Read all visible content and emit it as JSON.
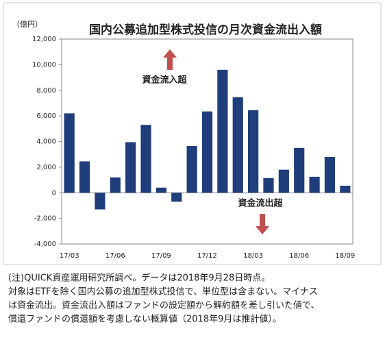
{
  "chart_data": {
    "type": "bar",
    "title": "国内公募追加型株式投信の月次資金流出入額",
    "y_axis_label": "（億円）",
    "categories": [
      "17/03",
      null,
      null,
      "17/06",
      null,
      null,
      "17/09",
      null,
      null,
      "17/12",
      null,
      null,
      "18/03",
      null,
      null,
      "18/06",
      null,
      null,
      "18/09"
    ],
    "values": [
      6200,
      2450,
      -1300,
      1200,
      3950,
      5300,
      400,
      -700,
      3650,
      6350,
      9600,
      7450,
      6450,
      1150,
      1800,
      3500,
      1250,
      2800,
      550
    ],
    "color": "#1f3d7a",
    "ylim": [
      -4000,
      12000
    ],
    "yticks": [
      {
        "value": -4000,
        "label": "-4,000"
      },
      {
        "value": -2000,
        "label": "-2,000"
      },
      0,
      {
        "value": 2000,
        "label": "2,000"
      },
      {
        "value": 4000,
        "label": "4,000"
      },
      {
        "value": 6000,
        "label": "6,000"
      },
      {
        "value": 8000,
        "label": "8,000"
      },
      {
        "value": 10000,
        "label": "10,000"
      },
      {
        "value": 12000,
        "label": "12,000"
      }
    ],
    "grid": false,
    "annotations": [
      "資金流入超",
      "資金流出超"
    ],
    "notes": [
      "(注)QUICK資産運用研究所調べ。データは2018年9月28日時点。",
      "対象はETFを除く国内公募の追加型株式投信で、単位型は含まない。マイナス",
      "は資金流出。資金流出入額はファンドの設定額から解約額を差し引いた値で、",
      "償還ファンドの償還額を考慮しない概算値（2018年9月は推計値）。"
    ]
  }
}
